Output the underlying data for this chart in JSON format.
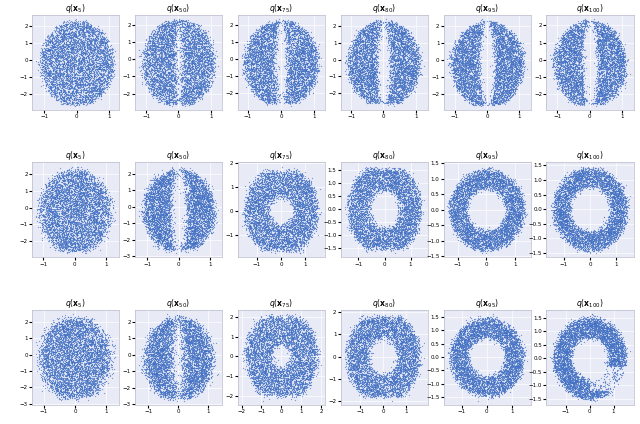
{
  "rows": 3,
  "cols": 6,
  "n_points": 5000,
  "point_color": "#4472C4",
  "point_size": 0.8,
  "point_alpha": 0.7,
  "bg_color": "#e8eaf6",
  "timesteps_row0": [
    5,
    50,
    75,
    80,
    95,
    100
  ],
  "timesteps_row1": [
    5,
    50,
    75,
    80,
    95,
    100
  ],
  "timesteps_row2": [
    5,
    50,
    75,
    80,
    95,
    100
  ],
  "seed": 42
}
